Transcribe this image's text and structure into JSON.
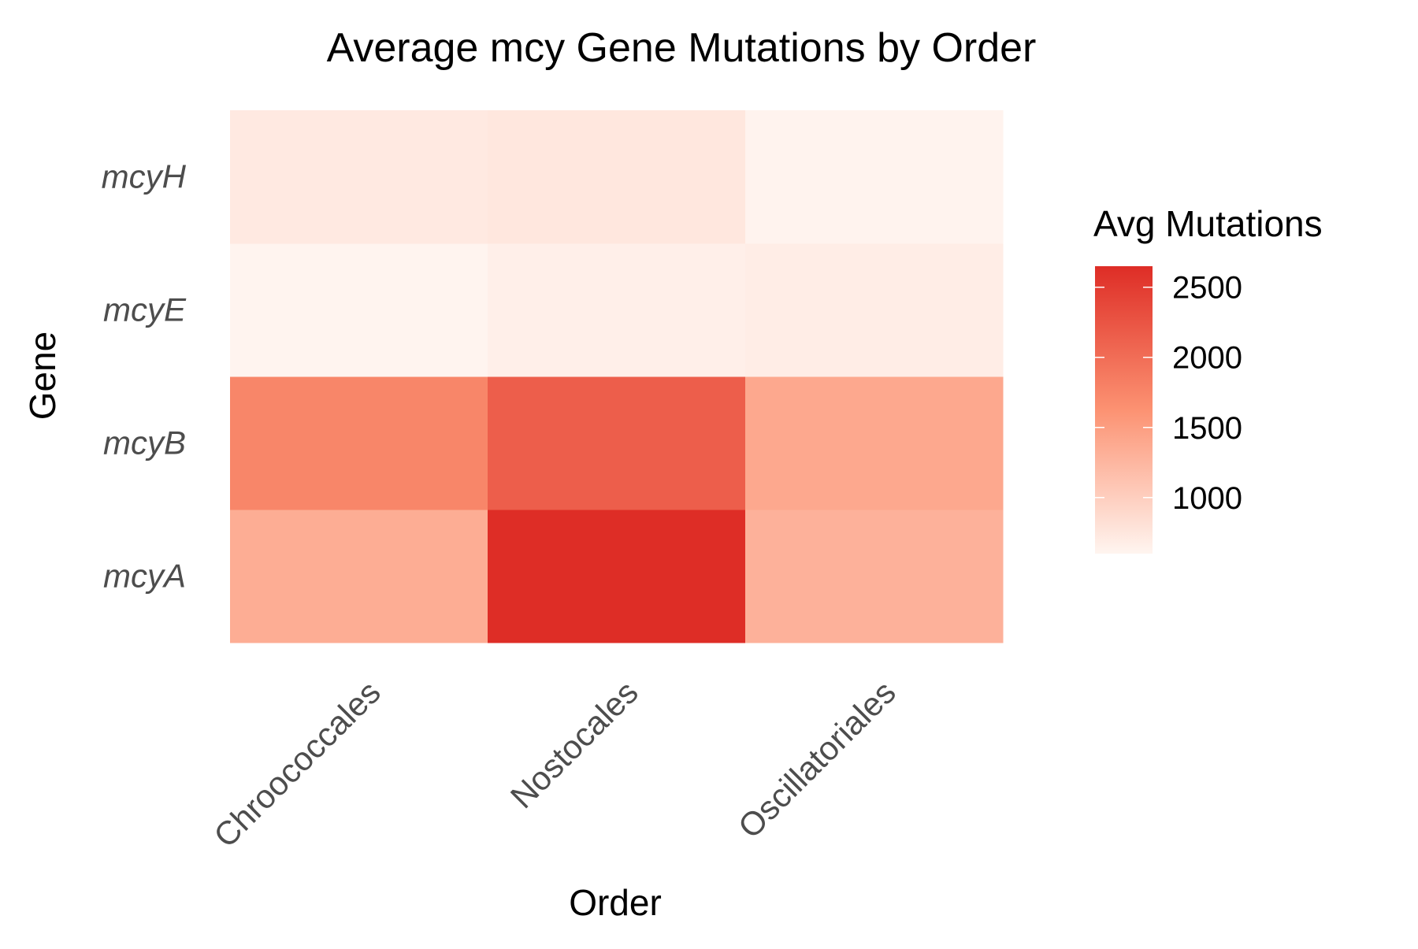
{
  "chart_data": {
    "type": "heatmap",
    "title": "Average mcy Gene Mutations by Order",
    "xlabel": "Order",
    "ylabel": "Gene",
    "x_categories": [
      "Chroococcales",
      "Nostocales",
      "Oscillatoriales"
    ],
    "y_categories": [
      "mcyA",
      "mcyB",
      "mcyE",
      "mcyH"
    ],
    "values": [
      [
        1350,
        2650,
        1300
      ],
      [
        1750,
        2150,
        1400
      ],
      [
        610,
        660,
        680
      ],
      [
        720,
        750,
        620
      ]
    ],
    "legend": {
      "title": "Avg Mutations",
      "ticks": [
        1000,
        1500,
        2000,
        2500
      ],
      "range": [
        600,
        2650
      ],
      "low_color": "#fff5f0",
      "high_color": "#de2d26",
      "placement": "right"
    },
    "grid": false
  }
}
